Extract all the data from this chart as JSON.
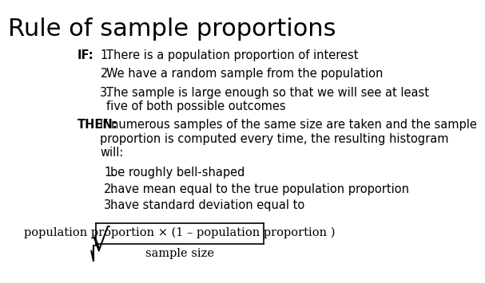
{
  "title": "Rule of sample proportions",
  "title_fontsize": 22,
  "body_fontsize": 10.5,
  "bg_color": "#ffffff",
  "text_color": "#000000",
  "if_label": "IF:",
  "then_label": "THEN:",
  "if_items": [
    "There is a population proportion of interest",
    "We have a random sample from the population",
    "The sample is large enough so that we will see at least\nfive of both possible outcomes"
  ],
  "then_intro": "If numerous samples of the same size are taken and the sample\nproportion is computed every time, the resulting histogram\nwill:",
  "then_items": [
    "be roughly bell-shaped",
    "have mean equal to the true population proportion",
    "have standard deviation equal to"
  ],
  "formula_numerator": "population proportion × (1 – population proportion )",
  "formula_denominator": "sample size",
  "formula_sqrt": "√"
}
